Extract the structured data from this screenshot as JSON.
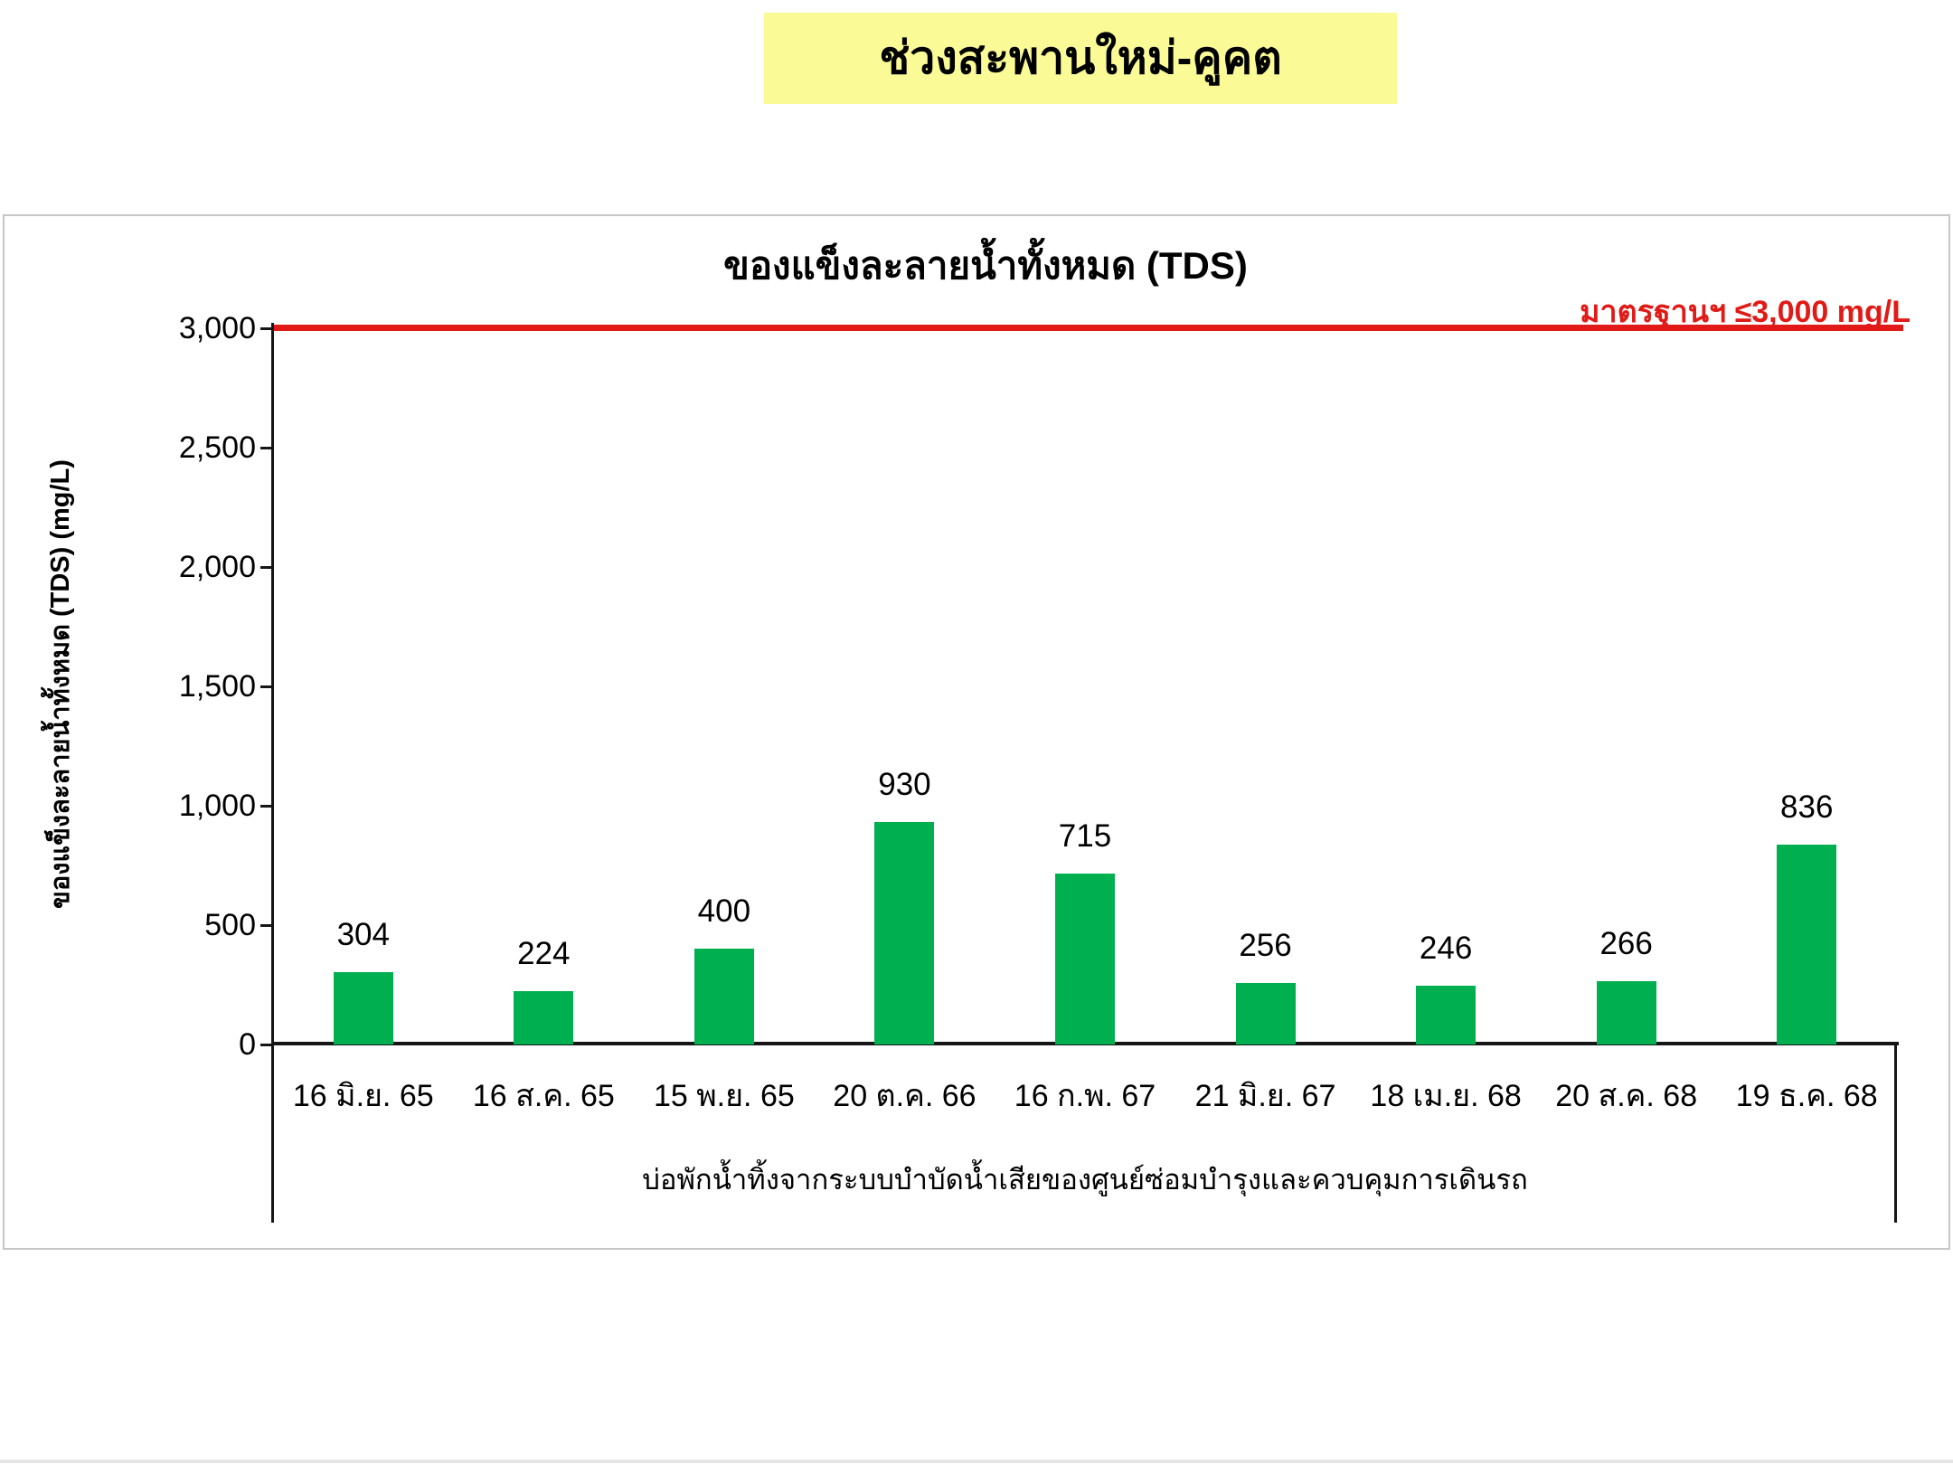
{
  "banner": {
    "title": "ช่วงสะพานใหม่-คูคต",
    "bg_color": "#FAFA96"
  },
  "chart": {
    "title": "ของแข็งละลายน้ำทั้งหมด (TDS)",
    "standard_label": "มาตรฐานฯ ≤3,000 mg/L",
    "standard_color": "#E01A16",
    "bar_color": "#00B050",
    "y_axis": {
      "title": "ของแข็งละลายน้ำทั้งหมด (TDS) (mg/L)",
      "tick_labels": [
        "3,000",
        "2,500",
        "2,000",
        "1,500",
        "1,000",
        "500",
        "0"
      ]
    },
    "x_axis": {
      "title": "บ่อพักน้ำทิ้งจากระบบบำบัดน้ำเสียของศูนย์ซ่อมบำรุงและควบคุมการเดินรถ"
    }
  },
  "chart_data": {
    "type": "bar",
    "title": "ของแข็งละลายน้ำทั้งหมด (TDS)",
    "categories": [
      "16 มิ.ย. 65",
      "16 ส.ค. 65",
      "15 พ.ย. 65",
      "20 ต.ค. 66",
      "16 ก.พ. 67",
      "21 มิ.ย. 67",
      "18 เม.ย. 68",
      "20 ส.ค. 68",
      "19 ธ.ค. 68"
    ],
    "values": [
      304,
      224,
      400,
      930,
      715,
      256,
      246,
      266,
      836
    ],
    "bar_color": "#00B050",
    "xlabel": "บ่อพักน้ำทิ้งจากระบบบำบัดน้ำเสียของศูนย์ซ่อมบำรุงและควบคุมการเดินรถ",
    "ylabel": "ของแข็งละลายน้ำทั้งหมด (TDS) (mg/L)",
    "ylim": [
      0,
      3000
    ],
    "yticks": [
      0,
      500,
      1000,
      1500,
      2000,
      2500,
      3000
    ],
    "grid": false,
    "legend": false,
    "annotations": [
      {
        "type": "hline",
        "y": 3000,
        "label": "มาตรฐานฯ ≤3,000 mg/L",
        "color": "#E01A16"
      }
    ]
  }
}
